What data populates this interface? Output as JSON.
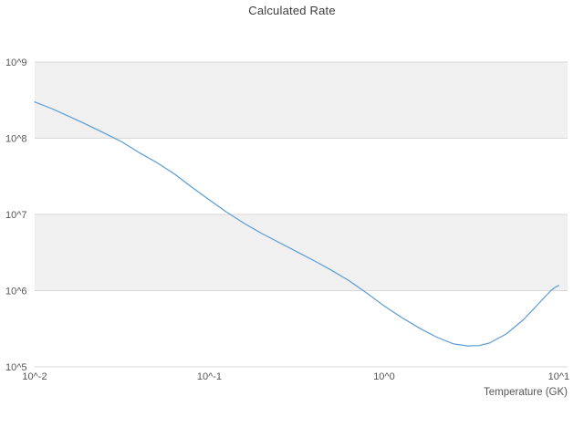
{
  "chart_data": {
    "type": "line",
    "title": "Calculated Rate",
    "xlabel": "Temperature (GK)",
    "ylabel": "",
    "x_scale": "log",
    "y_scale": "log",
    "xlim_log10": [
      -2,
      1.05
    ],
    "ylim_log10": [
      5,
      9
    ],
    "grid": true,
    "legend": "none",
    "x_ticks": [
      {
        "value": 0.01,
        "label": "10^-2"
      },
      {
        "value": 0.1,
        "label": "10^-1"
      },
      {
        "value": 1,
        "label": "10^0"
      },
      {
        "value": 10,
        "label": "10^1"
      }
    ],
    "y_ticks": [
      {
        "value": 1000000000.0,
        "label": "10^9"
      },
      {
        "value": 100000000.0,
        "label": "10^8"
      },
      {
        "value": 10000000.0,
        "label": "10^7"
      },
      {
        "value": 1000000.0,
        "label": "10^6"
      },
      {
        "value": 100000.0,
        "label": "10^5"
      }
    ],
    "bands_log10": [
      [
        8,
        9
      ],
      [
        6,
        7
      ]
    ],
    "colors": {
      "line": "#5b9bd5",
      "band": "#f0f0f0",
      "grid": "#d9d9d9",
      "title_text": "#3d3d3d",
      "tick_text": "#555555",
      "background": "#ffffff"
    },
    "series": [
      {
        "name": "calculated-rate",
        "points": [
          [
            0.01,
            300000000.0
          ],
          [
            0.0125,
            245000000.0
          ],
          [
            0.016,
            190000000.0
          ],
          [
            0.02,
            150000000.0
          ],
          [
            0.025,
            117000000.0
          ],
          [
            0.032,
            88000000.0
          ],
          [
            0.04,
            64000000.0
          ],
          [
            0.05,
            48000000.0
          ],
          [
            0.063,
            34000000.0
          ],
          [
            0.08,
            22500000.0
          ],
          [
            0.1,
            15500000.0
          ],
          [
            0.125,
            10800000.0
          ],
          [
            0.16,
            7500000.0
          ],
          [
            0.2,
            5600000.0
          ],
          [
            0.25,
            4300000.0
          ],
          [
            0.32,
            3200000.0
          ],
          [
            0.4,
            2450000.0
          ],
          [
            0.5,
            1850000.0
          ],
          [
            0.63,
            1350000.0
          ],
          [
            0.8,
            920000.0
          ],
          [
            1.0,
            630000.0
          ],
          [
            1.25,
            450000.0
          ],
          [
            1.6,
            320000.0
          ],
          [
            2.0,
            245000.0
          ],
          [
            2.5,
            200000.0
          ],
          [
            3.0,
            188000.0
          ],
          [
            3.5,
            190000.0
          ],
          [
            4.0,
            205000.0
          ],
          [
            5.0,
            270000.0
          ],
          [
            6.3,
            420000.0
          ],
          [
            8.0,
            750000.0
          ],
          [
            9.0,
            1000000.0
          ],
          [
            9.5,
            1100000.0
          ],
          [
            10.0,
            1170000.0
          ]
        ]
      }
    ]
  }
}
